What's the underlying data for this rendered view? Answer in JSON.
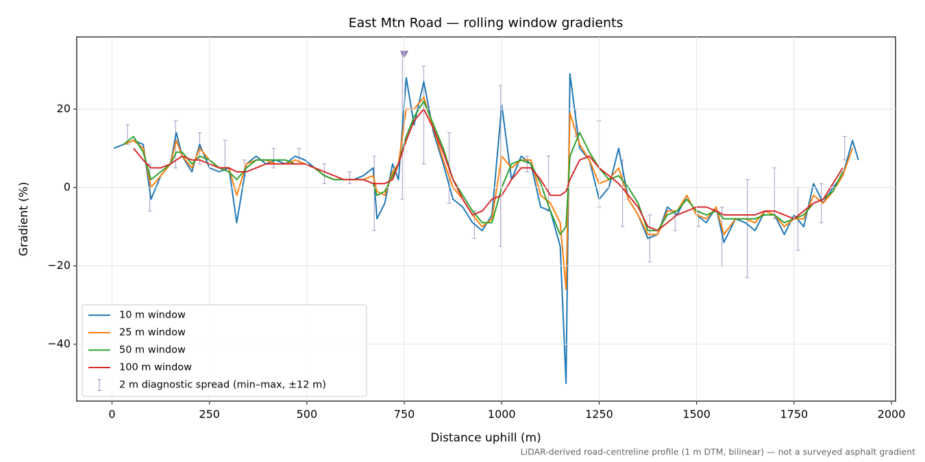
{
  "chart_data": {
    "type": "line",
    "title": "East Mtn Road — rolling window gradients",
    "x_label": "Distance uphill (m)",
    "y_label": "Gradient (%)",
    "footnote": "LiDAR-derived road-centreline profile (1 m DTM, bilinear) — not a surveyed asphalt gradient",
    "xlim": [
      -90.5,
      2010.5
    ],
    "ylim": [
      -54.5,
      38.4
    ],
    "xticks": [
      0,
      250,
      500,
      750,
      1000,
      1250,
      1500,
      1750,
      2000
    ],
    "yticks": [
      {
        "value": -40,
        "label": "−40"
      },
      {
        "value": -20,
        "label": "−20"
      },
      0,
      20
    ],
    "grid": true,
    "legend": "lower left",
    "x": [
      5,
      30,
      55,
      80,
      100,
      125,
      150,
      165,
      180,
      205,
      225,
      250,
      275,
      300,
      320,
      345,
      370,
      395,
      420,
      445,
      470,
      495,
      520,
      545,
      570,
      595,
      620,
      645,
      670,
      680,
      700,
      720,
      735,
      755,
      775,
      800,
      825,
      850,
      875,
      900,
      925,
      950,
      975,
      1000,
      1025,
      1050,
      1075,
      1100,
      1125,
      1150,
      1165,
      1175,
      1200,
      1225,
      1250,
      1275,
      1300,
      1325,
      1350,
      1375,
      1400,
      1425,
      1450,
      1475,
      1500,
      1525,
      1550,
      1570,
      1600,
      1625,
      1650,
      1675,
      1700,
      1725,
      1750,
      1775,
      1800,
      1825,
      1850,
      1875,
      1900,
      1915
    ],
    "series": [
      {
        "name": "10 m window",
        "color": "#1f77b4",
        "values": [
          10,
          11,
          12,
          11,
          -3,
          3,
          6,
          14,
          8,
          4,
          11,
          5,
          4,
          5,
          -9,
          6,
          8,
          6,
          7,
          6,
          8,
          7,
          5,
          3,
          2,
          2,
          2,
          3,
          5,
          -8,
          -4,
          6,
          2,
          28,
          16,
          27,
          14,
          6,
          -3,
          -5,
          -9,
          -11,
          -7,
          21,
          2,
          8,
          6,
          -5,
          -6,
          -15,
          -50,
          29,
          10,
          7,
          -3,
          0,
          10,
          -3,
          -7,
          -13,
          -12,
          -5,
          -7,
          -2,
          -7,
          -9,
          -5,
          -14,
          -8,
          -9,
          -11,
          -6,
          -7,
          -12,
          -7,
          -10,
          1,
          -4,
          0,
          3,
          12,
          7
        ]
      },
      {
        "name": "25 m window",
        "color": "#ff7f0e",
        "values": [
          null,
          11,
          12,
          10,
          0,
          3,
          6,
          12,
          8,
          5,
          10,
          7,
          5,
          5,
          -2,
          6,
          7,
          7,
          6,
          6,
          7,
          6,
          5,
          3,
          2,
          2,
          2,
          2,
          3,
          -1,
          -2,
          4,
          6,
          20,
          20,
          23,
          15,
          7,
          0,
          -3,
          -7,
          -10,
          -8,
          8,
          5,
          7,
          7,
          -2,
          -4,
          -9,
          -26,
          19,
          11,
          7,
          1,
          2,
          5,
          -3,
          -7,
          -12,
          -12,
          -6,
          -6,
          -2,
          -7,
          -8,
          -5,
          -12,
          -8,
          -8,
          -9,
          -6,
          -7,
          -10,
          -8,
          -8,
          -2,
          -4,
          -1,
          3,
          10,
          null
        ]
      },
      {
        "name": "50 m window",
        "color": "#2ca02c",
        "values": [
          null,
          11,
          13,
          9,
          2,
          4,
          6,
          9,
          9,
          6,
          8,
          7,
          5,
          4,
          2,
          5,
          7,
          7,
          7,
          7,
          6,
          6,
          5,
          3,
          2,
          2,
          2,
          2,
          1,
          -2,
          -1,
          3,
          6,
          13,
          18,
          22,
          16,
          10,
          2,
          -2,
          -6,
          -9,
          -9,
          0,
          6,
          7,
          6,
          1,
          -6,
          -12,
          -10,
          8,
          14,
          9,
          5,
          2,
          3,
          0,
          -4,
          -11,
          -11,
          -7,
          -6,
          -3,
          -6,
          -7,
          -6,
          -8,
          -8,
          -8,
          -8,
          -7,
          -7,
          -9,
          -8,
          -7,
          -4,
          -3,
          -1,
          4,
          null,
          null
        ]
      },
      {
        "name": "100 m window",
        "color": "#d62728",
        "values": [
          null,
          null,
          10,
          7,
          5,
          5,
          6,
          7,
          8,
          7,
          7,
          6,
          5,
          5,
          4,
          4,
          5,
          6,
          6,
          6,
          6,
          6,
          5,
          4,
          3,
          2,
          2,
          2,
          1,
          1,
          1,
          2,
          6,
          12,
          17,
          20,
          15,
          9,
          2,
          -3,
          -7,
          -6,
          -3,
          -2,
          2,
          5,
          5,
          2,
          -2,
          -2,
          -1,
          2,
          7,
          8,
          5,
          3,
          1,
          -2,
          -5,
          -10,
          -11,
          -9,
          -7,
          -6,
          -5,
          -5,
          -6,
          -7,
          -7,
          -7,
          -7,
          -6,
          -6,
          -7,
          -8,
          -6,
          -4,
          -3,
          1,
          5,
          null,
          null
        ]
      }
    ],
    "diagnostic": {
      "name": "2 m diagnostic spread (min–max, ±12 m)",
      "color": "#a29cc4",
      "x": [
        40,
        97,
        163,
        225,
        290,
        340,
        415,
        480,
        545,
        610,
        673,
        745,
        800,
        865,
        930,
        997,
        1065,
        1120,
        1190,
        1250,
        1310,
        1380,
        1445,
        1505,
        1565,
        1630,
        1700,
        1760,
        1820,
        1880
      ],
      "min": [
        11,
        -6,
        5,
        6,
        5,
        3,
        5,
        6,
        1,
        1,
        -11,
        -3,
        6,
        -4,
        -13,
        -15,
        4,
        -6,
        13,
        -5,
        -10,
        -19,
        -11,
        -10,
        -20,
        -23,
        -8,
        -16,
        -9,
        7
      ],
      "max": [
        16,
        6,
        17,
        14,
        12,
        7,
        10,
        10,
        6,
        4,
        8,
        34,
        31,
        14,
        -6,
        26,
        8,
        8,
        20,
        17,
        7,
        -7,
        -7,
        -6,
        -5,
        2,
        5,
        0,
        1,
        13
      ]
    },
    "clip_marker": {
      "x": 750,
      "y": 34,
      "color": "#8e7cb0"
    }
  }
}
